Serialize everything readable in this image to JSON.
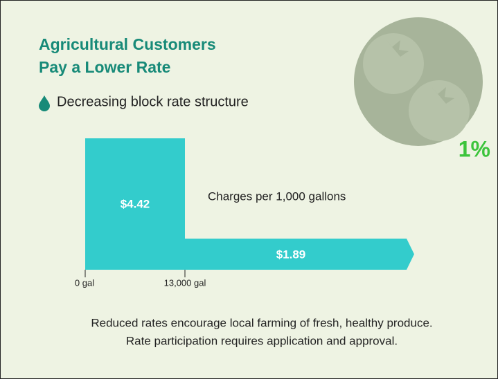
{
  "header": {
    "title_lines": [
      "Agricultural Customers",
      "Pay a Lower Rate"
    ],
    "bullet": "Decreasing block rate structure",
    "badge": "1%"
  },
  "rate_diagram": {
    "blocks": [
      {
        "label": "$4.42"
      },
      {
        "label": "$1.89"
      }
    ],
    "caption": "Charges per 1,000 gallons",
    "axis_labels": [
      "0 gal",
      "13,000 gal"
    ]
  },
  "footer": {
    "lines": [
      "Reduced rates encourage local farming of fresh, healthy produce.",
      "Rate participation requires application and approval."
    ]
  }
}
